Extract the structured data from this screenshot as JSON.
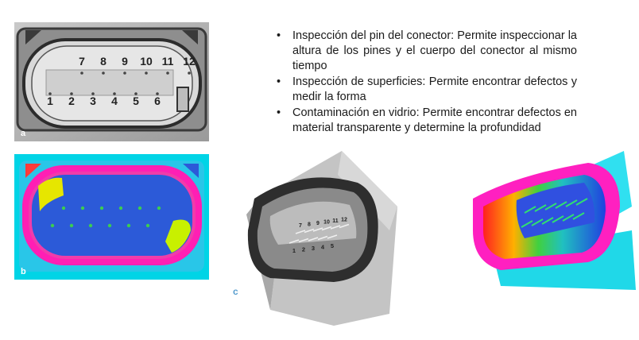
{
  "bullets": [
    "Inspección del pin del conector: Permite inspeccionar la altura de los pines y el cuerpo del conector al mismo tiempo",
    "Inspección de superficies: Permite encontrar defectos y medir la forma",
    "Contaminación en vidrio: Permite encontrar defectos en material transparente y determine la profundidad"
  ],
  "panels": {
    "a": "a",
    "b": "b",
    "c": "c"
  },
  "pins_top": [
    "7",
    "8",
    "9",
    "10",
    "11",
    "12"
  ],
  "pins_bottom": [
    "1",
    "2",
    "3",
    "4",
    "5",
    "6"
  ],
  "pins_3d_top": [
    "7",
    "8",
    "9",
    "10",
    "11",
    "12"
  ],
  "pins_3d_bottom": [
    "1",
    "2",
    "3",
    "4",
    "5"
  ]
}
